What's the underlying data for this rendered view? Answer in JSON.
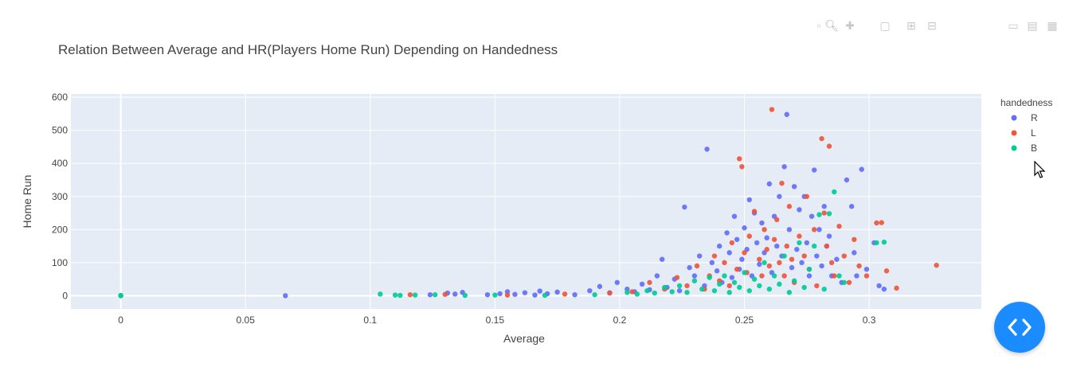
{
  "chart_data": {
    "type": "scatter",
    "title": "Relation Between Average and HR(Players Home Run) Depending on Handedness",
    "xlabel": "Average",
    "ylabel": "Home Run",
    "xlim": [
      -0.02,
      0.345
    ],
    "ylim": [
      -40,
      610
    ],
    "xticks": [
      0,
      0.05,
      0.1,
      0.15,
      0.2,
      0.25,
      0.3
    ],
    "xtick_labels": [
      "0",
      "0.05",
      "0.1",
      "0.15",
      "0.2",
      "0.25",
      "0.3"
    ],
    "yticks": [
      0,
      100,
      200,
      300,
      400,
      500,
      600
    ],
    "ytick_labels": [
      "0",
      "100",
      "200",
      "300",
      "400",
      "500",
      "600"
    ],
    "grid": true,
    "legend": {
      "title": "handedness",
      "placement": "right"
    },
    "series": [
      {
        "name": "R",
        "color": "#636efa",
        "points": [
          [
            0.0,
            0
          ],
          [
            0.066,
            0
          ],
          [
            0.124,
            3
          ],
          [
            0.131,
            8
          ],
          [
            0.134,
            5
          ],
          [
            0.137,
            10
          ],
          [
            0.147,
            3
          ],
          [
            0.152,
            6
          ],
          [
            0.155,
            12
          ],
          [
            0.158,
            4
          ],
          [
            0.162,
            9
          ],
          [
            0.166,
            2
          ],
          [
            0.168,
            14
          ],
          [
            0.171,
            6
          ],
          [
            0.175,
            11
          ],
          [
            0.182,
            3
          ],
          [
            0.188,
            15
          ],
          [
            0.192,
            28
          ],
          [
            0.196,
            9
          ],
          [
            0.199,
            40
          ],
          [
            0.203,
            20
          ],
          [
            0.206,
            12
          ],
          [
            0.209,
            35
          ],
          [
            0.212,
            18
          ],
          [
            0.215,
            60
          ],
          [
            0.217,
            110
          ],
          [
            0.219,
            25
          ],
          [
            0.222,
            50
          ],
          [
            0.224,
            15
          ],
          [
            0.226,
            268
          ],
          [
            0.228,
            85
          ],
          [
            0.23,
            60
          ],
          [
            0.232,
            120
          ],
          [
            0.234,
            30
          ],
          [
            0.235,
            443
          ],
          [
            0.237,
            100
          ],
          [
            0.239,
            75
          ],
          [
            0.24,
            150
          ],
          [
            0.241,
            40
          ],
          [
            0.243,
            190
          ],
          [
            0.244,
            130
          ],
          [
            0.245,
            55
          ],
          [
            0.246,
            240
          ],
          [
            0.247,
            170
          ],
          [
            0.248,
            80
          ],
          [
            0.249,
            110
          ],
          [
            0.25,
            205
          ],
          [
            0.251,
            140
          ],
          [
            0.252,
            290
          ],
          [
            0.253,
            60
          ],
          [
            0.254,
            250
          ],
          [
            0.255,
            160
          ],
          [
            0.256,
            95
          ],
          [
            0.257,
            220
          ],
          [
            0.258,
            130
          ],
          [
            0.259,
            175
          ],
          [
            0.26,
            338
          ],
          [
            0.261,
            70
          ],
          [
            0.262,
            240
          ],
          [
            0.263,
            150
          ],
          [
            0.264,
            300
          ],
          [
            0.265,
            120
          ],
          [
            0.266,
            390
          ],
          [
            0.267,
            548
          ],
          [
            0.268,
            200
          ],
          [
            0.269,
            85
          ],
          [
            0.27,
            330
          ],
          [
            0.271,
            140
          ],
          [
            0.272,
            260
          ],
          [
            0.273,
            100
          ],
          [
            0.274,
            300
          ],
          [
            0.275,
            160
          ],
          [
            0.276,
            60
          ],
          [
            0.277,
            240
          ],
          [
            0.278,
            380
          ],
          [
            0.279,
            120
          ],
          [
            0.28,
            200
          ],
          [
            0.281,
            90
          ],
          [
            0.282,
            270
          ],
          [
            0.283,
            150
          ],
          [
            0.284,
            180
          ],
          [
            0.285,
            60
          ],
          [
            0.287,
            110
          ],
          [
            0.289,
            40
          ],
          [
            0.291,
            350
          ],
          [
            0.293,
            270
          ],
          [
            0.294,
            130
          ],
          [
            0.295,
            60
          ],
          [
            0.297,
            382
          ],
          [
            0.299,
            80
          ],
          [
            0.302,
            160
          ],
          [
            0.304,
            30
          ],
          [
            0.306,
            20
          ]
        ]
      },
      {
        "name": "L",
        "color": "#ef553b",
        "points": [
          [
            0.116,
            3
          ],
          [
            0.13,
            4
          ],
          [
            0.155,
            2
          ],
          [
            0.178,
            5
          ],
          [
            0.196,
            8
          ],
          [
            0.205,
            12
          ],
          [
            0.212,
            40
          ],
          [
            0.218,
            20
          ],
          [
            0.223,
            55
          ],
          [
            0.227,
            30
          ],
          [
            0.231,
            90
          ],
          [
            0.234,
            20
          ],
          [
            0.236,
            60
          ],
          [
            0.238,
            120
          ],
          [
            0.24,
            45
          ],
          [
            0.242,
            100
          ],
          [
            0.244,
            30
          ],
          [
            0.245,
            160
          ],
          [
            0.247,
            80
          ],
          [
            0.248,
            414
          ],
          [
            0.249,
            390
          ],
          [
            0.25,
            130
          ],
          [
            0.251,
            70
          ],
          [
            0.252,
            180
          ],
          [
            0.254,
            255
          ],
          [
            0.256,
            110
          ],
          [
            0.257,
            60
          ],
          [
            0.258,
            200
          ],
          [
            0.259,
            140
          ],
          [
            0.26,
            90
          ],
          [
            0.261,
            563
          ],
          [
            0.262,
            170
          ],
          [
            0.263,
            230
          ],
          [
            0.264,
            100
          ],
          [
            0.265,
            340
          ],
          [
            0.266,
            60
          ],
          [
            0.267,
            150
          ],
          [
            0.268,
            270
          ],
          [
            0.269,
            110
          ],
          [
            0.27,
            40
          ],
          [
            0.272,
            180
          ],
          [
            0.274,
            120
          ],
          [
            0.275,
            300
          ],
          [
            0.276,
            80
          ],
          [
            0.278,
            200
          ],
          [
            0.279,
            30
          ],
          [
            0.281,
            475
          ],
          [
            0.282,
            250
          ],
          [
            0.283,
            150
          ],
          [
            0.284,
            452
          ],
          [
            0.285,
            100
          ],
          [
            0.286,
            60
          ],
          [
            0.288,
            210
          ],
          [
            0.29,
            120
          ],
          [
            0.292,
            40
          ],
          [
            0.294,
            170
          ],
          [
            0.296,
            90
          ],
          [
            0.299,
            60
          ],
          [
            0.303,
            220
          ],
          [
            0.305,
            221
          ],
          [
            0.307,
            75
          ],
          [
            0.311,
            23
          ],
          [
            0.327,
            92
          ]
        ]
      },
      {
        "name": "B",
        "color": "#00cc96",
        "points": [
          [
            0.0,
            0
          ],
          [
            0.0,
            1
          ],
          [
            0.104,
            5
          ],
          [
            0.11,
            2
          ],
          [
            0.112,
            1
          ],
          [
            0.118,
            2
          ],
          [
            0.126,
            3
          ],
          [
            0.138,
            1
          ],
          [
            0.15,
            2
          ],
          [
            0.17,
            1
          ],
          [
            0.19,
            3
          ],
          [
            0.203,
            10
          ],
          [
            0.207,
            5
          ],
          [
            0.211,
            15
          ],
          [
            0.214,
            8
          ],
          [
            0.218,
            25
          ],
          [
            0.221,
            12
          ],
          [
            0.224,
            30
          ],
          [
            0.227,
            10
          ],
          [
            0.23,
            45
          ],
          [
            0.233,
            20
          ],
          [
            0.236,
            55
          ],
          [
            0.238,
            15
          ],
          [
            0.24,
            35
          ],
          [
            0.242,
            60
          ],
          [
            0.244,
            10
          ],
          [
            0.246,
            40
          ],
          [
            0.248,
            25
          ],
          [
            0.25,
            70
          ],
          [
            0.252,
            15
          ],
          [
            0.254,
            50
          ],
          [
            0.256,
            30
          ],
          [
            0.258,
            100
          ],
          [
            0.26,
            20
          ],
          [
            0.262,
            60
          ],
          [
            0.264,
            35
          ],
          [
            0.266,
            120
          ],
          [
            0.268,
            10
          ],
          [
            0.27,
            45
          ],
          [
            0.272,
            160
          ],
          [
            0.274,
            25
          ],
          [
            0.276,
            80
          ],
          [
            0.278,
            150
          ],
          [
            0.28,
            245
          ],
          [
            0.282,
            20
          ],
          [
            0.284,
            248
          ],
          [
            0.286,
            314
          ],
          [
            0.288,
            60
          ],
          [
            0.29,
            40
          ],
          [
            0.303,
            160
          ],
          [
            0.306,
            162
          ]
        ]
      }
    ]
  },
  "modebar": [
    "camera-icon",
    "zoom-icon",
    "pan-icon",
    "box-select-icon",
    "lasso-icon",
    "zoom-in-icon",
    "zoom-out-icon",
    "autoscale-icon",
    "reset-icon",
    "spike-icon",
    "hover-closest-icon",
    "hover-compare-icon",
    "plotly-logo-icon"
  ],
  "fab": {
    "icon": "code-icon"
  }
}
